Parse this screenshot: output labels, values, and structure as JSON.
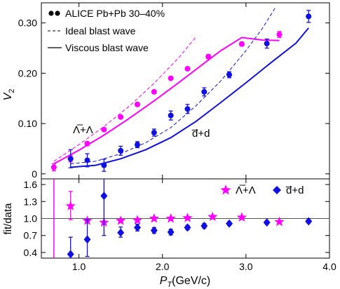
{
  "chart_data": [
    {
      "type": "scatter",
      "panel": "main",
      "ylabel_base": "V",
      "ylabel_sub": "2",
      "xlim": [
        0.55,
        4.0
      ],
      "ylim": [
        -0.01,
        0.34
      ],
      "yticks": [
        0,
        0.1,
        0.2,
        0.3
      ],
      "yticklabels": [
        "0",
        "0.10",
        "0.20",
        "0.30"
      ],
      "legend": {
        "position": "top-left",
        "entries": [
          {
            "style": "markers",
            "label": "ALICE Pb+Pb 30–40%"
          },
          {
            "style": "dashed",
            "label": "Ideal blast wave"
          },
          {
            "style": "solid",
            "label": "Viscous blast wave"
          }
        ]
      },
      "annotations": [
        {
          "id": "lambda",
          "text": "Λ̅+Λ"
        },
        {
          "id": "deuteron",
          "text": "d̅+d"
        }
      ],
      "series": [
        {
          "id": "lambda_data",
          "color": "#ff00ff",
          "marker": "circle",
          "x": [
            0.7,
            0.9,
            1.1,
            1.3,
            1.5,
            1.7,
            1.9,
            2.1,
            2.3,
            2.55,
            2.95,
            3.4
          ],
          "y": [
            0.013,
            0.03,
            0.06,
            0.088,
            0.113,
            0.138,
            0.163,
            0.19,
            0.209,
            0.233,
            0.258,
            0.277
          ],
          "err": [
            0.007,
            0.006,
            0.004,
            0.003,
            0.003,
            0.003,
            0.003,
            0.003,
            0.003,
            0.004,
            0.004,
            0.006
          ]
        },
        {
          "id": "deuteron_data",
          "color": "#1010e0",
          "marker": "circle",
          "x": [
            0.9,
            1.1,
            1.3,
            1.5,
            1.7,
            1.9,
            2.1,
            2.3,
            2.5,
            2.8,
            3.25,
            3.75
          ],
          "y": [
            0.03,
            0.027,
            0.017,
            0.046,
            0.058,
            0.082,
            0.116,
            0.129,
            0.163,
            0.197,
            0.259,
            0.313
          ],
          "err": [
            0.018,
            0.013,
            0.012,
            0.009,
            0.006,
            0.007,
            0.009,
            0.009,
            0.008,
            0.006,
            0.009,
            0.012
          ]
        },
        {
          "id": "lambda_ideal",
          "color": "#ff00ff",
          "line": "dashed",
          "width": 1,
          "x": [
            0.7,
            1.0,
            1.3,
            1.6,
            1.9,
            2.2,
            2.4
          ],
          "y": [
            0.025,
            0.058,
            0.094,
            0.134,
            0.18,
            0.232,
            0.272
          ]
        },
        {
          "id": "lambda_viscous",
          "color": "#ff00ff",
          "line": "solid",
          "width": 2,
          "x": [
            0.7,
            1.0,
            1.3,
            1.6,
            1.9,
            2.2,
            2.5,
            2.7,
            2.95,
            3.2,
            3.4
          ],
          "y": [
            0.02,
            0.047,
            0.077,
            0.11,
            0.145,
            0.182,
            0.22,
            0.245,
            0.271,
            0.266,
            0.265
          ]
        },
        {
          "id": "deuteron_ideal",
          "color": "#1010e0",
          "line": "dashed",
          "width": 1,
          "x": [
            0.9,
            1.2,
            1.5,
            1.8,
            2.1,
            2.4,
            2.7,
            3.0,
            3.2,
            3.35
          ],
          "y": [
            0.02,
            0.025,
            0.04,
            0.062,
            0.092,
            0.135,
            0.185,
            0.245,
            0.29,
            0.33
          ]
        },
        {
          "id": "deuteron_viscous",
          "color": "#1010e0",
          "line": "solid",
          "width": 2,
          "x": [
            0.9,
            1.2,
            1.5,
            1.8,
            2.1,
            2.4,
            2.7,
            3.0,
            3.3,
            3.6,
            3.75
          ],
          "y": [
            0.013,
            0.017,
            0.03,
            0.048,
            0.072,
            0.104,
            0.142,
            0.181,
            0.221,
            0.26,
            0.29
          ]
        }
      ]
    },
    {
      "type": "scatter",
      "panel": "ratio",
      "ylabel": "fit/data",
      "xlabel_base": "P",
      "xlabel_sub": "T",
      "xlabel_rest": "(GeV/c)",
      "xlim": [
        0.55,
        4.0
      ],
      "ylim": [
        0.3,
        1.7
      ],
      "yticks": [
        0.4,
        0.7,
        1.0,
        1.3,
        1.6
      ],
      "yticklabels": [
        "0.4",
        "0.7",
        "1.0",
        "1.3",
        "1.6"
      ],
      "xticks": [
        1.0,
        2.0,
        3.0,
        4.0
      ],
      "xticklabels": [
        "1.0",
        "2.0",
        "3.0",
        "4.0"
      ],
      "reference_line": 1.0,
      "legend": {
        "position": "top-right",
        "entries": [
          {
            "marker": "star",
            "color": "#ff00ff",
            "label": "Λ̅+Λ"
          },
          {
            "marker": "diamond",
            "color": "#1010e0",
            "label": "d̅+d"
          }
        ]
      },
      "series": [
        {
          "id": "lambda_ratio",
          "color": "#ff00ff",
          "marker": "star",
          "x": [
            0.7,
            0.9,
            1.1,
            1.3,
            1.5,
            1.7,
            1.9,
            2.1,
            2.3,
            2.6,
            2.95,
            3.4
          ],
          "y": [
            null,
            1.22,
            0.96,
            0.93,
            0.96,
            0.97,
            1.0,
            1.0,
            1.01,
            1.03,
            1.02,
            0.94
          ],
          "err_low": [
            0.0,
            0.24,
            0.0,
            0.0,
            0.0,
            0.0,
            0.0,
            0.0,
            0.0,
            0.0,
            0.0,
            0.0
          ],
          "err_high": [
            0.0,
            0.26,
            0.0,
            0.0,
            0.0,
            0.0,
            0.0,
            0.0,
            0.0,
            0.0,
            0.0,
            0.0
          ]
        },
        {
          "id": "deuteron_ratio",
          "color": "#1010e0",
          "marker": "diamond",
          "x": [
            0.9,
            1.1,
            1.3,
            1.5,
            1.7,
            1.9,
            2.1,
            2.3,
            2.5,
            2.8,
            3.25,
            3.75
          ],
          "y": [
            0.37,
            0.63,
            1.4,
            0.75,
            0.84,
            0.79,
            0.76,
            0.84,
            0.87,
            0.91,
            0.93,
            0.95
          ],
          "err_low": [
            0.07,
            0.3,
            0.7,
            0.08,
            0.06,
            0.05,
            0.05,
            0.04,
            0.04,
            0.03,
            0.03,
            0.03
          ],
          "err_high": [
            0.3,
            0.35,
            0.6,
            0.1,
            0.06,
            0.05,
            0.05,
            0.04,
            0.04,
            0.03,
            0.03,
            0.03
          ]
        }
      ],
      "vertical_errorbar_lambda_first": {
        "x": 0.7,
        "color": "#ff00ff"
      }
    }
  ]
}
